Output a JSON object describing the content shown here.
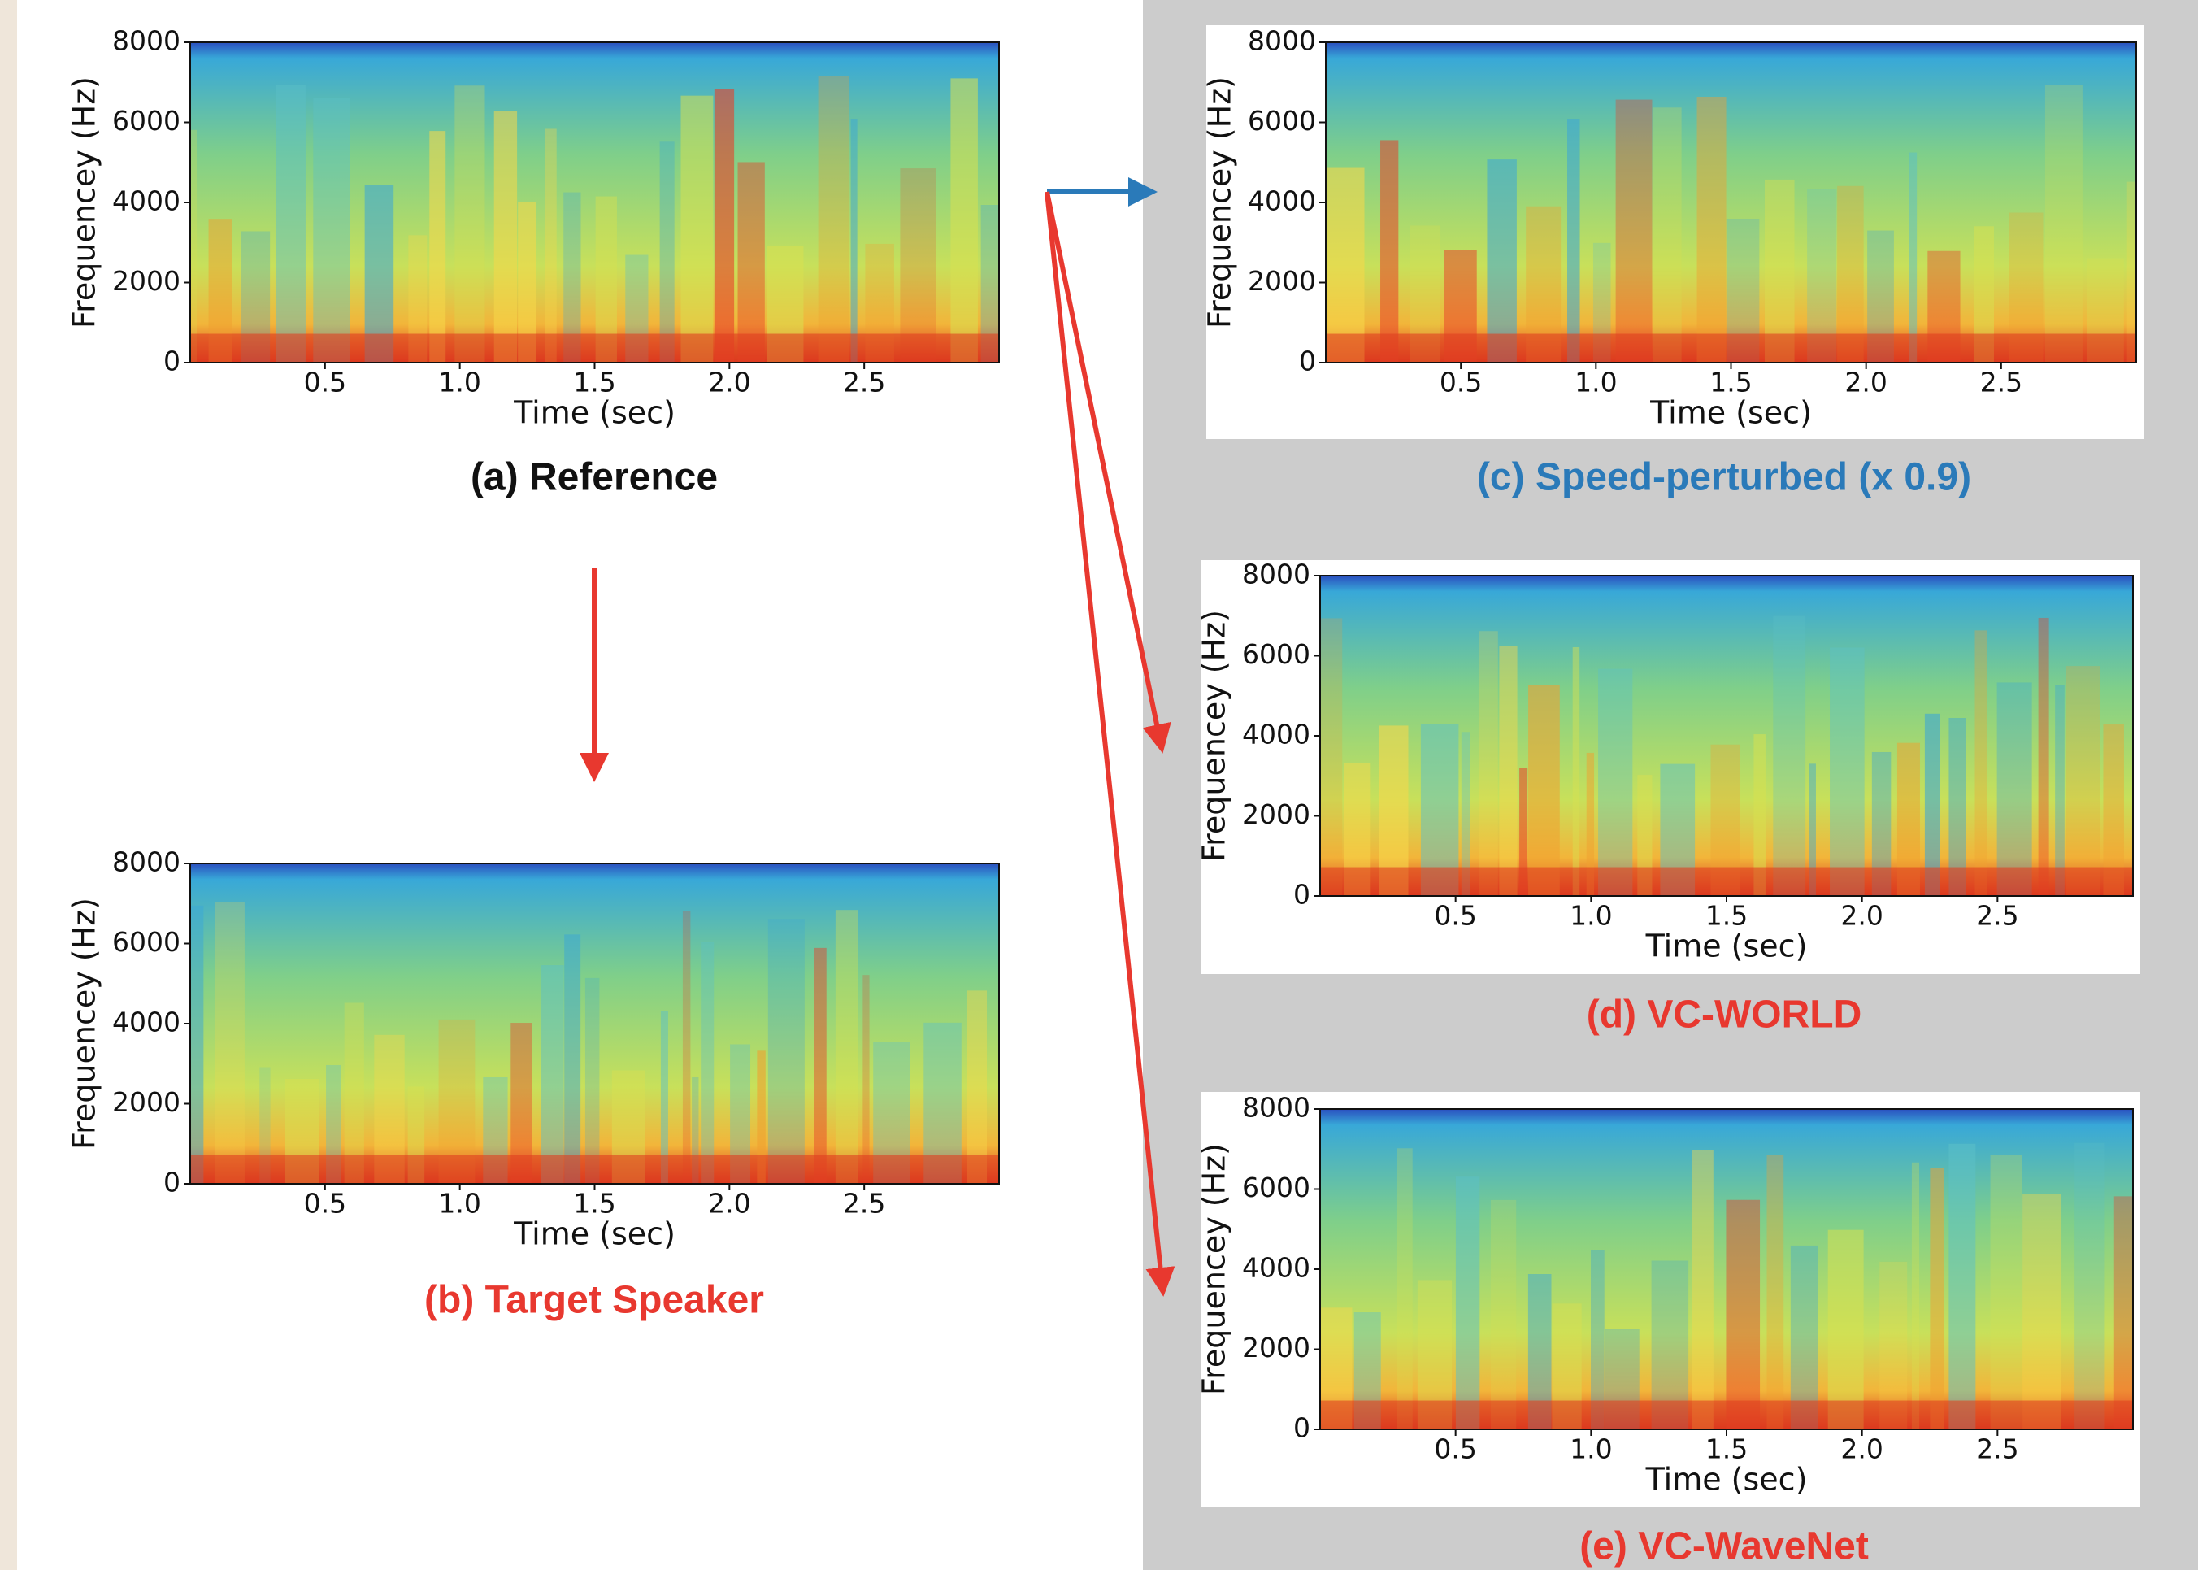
{
  "chart_data": [
    {
      "type": "spectrogram",
      "title": "(a) Reference",
      "title_color": "#111111",
      "xlabel": "Time (sec)",
      "ylabel": "Frequencey (Hz)",
      "xlim": [
        0,
        3
      ],
      "ylim": [
        0,
        8000
      ],
      "xticks": [
        0.5,
        {
          "value": 1,
          "label": "1.0"
        },
        1.5,
        {
          "value": 2,
          "label": "2.0"
        },
        2.5
      ],
      "yticks": [
        0,
        2000,
        4000,
        6000,
        8000
      ]
    },
    {
      "type": "spectrogram",
      "title": "(b) Target Speaker",
      "title_color": "#e8382f",
      "xlabel": "Time (sec)",
      "ylabel": "Frequencey (Hz)",
      "xlim": [
        0,
        3
      ],
      "ylim": [
        0,
        8000
      ],
      "xticks": [
        0.5,
        {
          "value": 1,
          "label": "1.0"
        },
        1.5,
        {
          "value": 2,
          "label": "2.0"
        },
        2.5
      ],
      "yticks": [
        0,
        2000,
        4000,
        6000,
        8000
      ]
    },
    {
      "type": "spectrogram",
      "title": "(c) Speed-perturbed (x 0.9)",
      "title_color": "#2a7ab9",
      "xlabel": "Time (sec)",
      "ylabel": "Frequencey (Hz)",
      "xlim": [
        0,
        3
      ],
      "ylim": [
        0,
        8000
      ],
      "xticks": [
        0.5,
        {
          "value": 1,
          "label": "1.0"
        },
        1.5,
        {
          "value": 2,
          "label": "2.0"
        },
        2.5
      ],
      "yticks": [
        0,
        2000,
        4000,
        6000,
        8000
      ]
    },
    {
      "type": "spectrogram",
      "title": "(d) VC-WORLD",
      "title_color": "#e8382f",
      "xlabel": "Time (sec)",
      "ylabel": "Frequencey (Hz)",
      "xlim": [
        0,
        3
      ],
      "ylim": [
        0,
        8000
      ],
      "xticks": [
        0.5,
        {
          "value": 1,
          "label": "1.0"
        },
        1.5,
        {
          "value": 2,
          "label": "2.0"
        },
        2.5
      ],
      "yticks": [
        0,
        2000,
        4000,
        6000,
        8000
      ]
    },
    {
      "type": "spectrogram",
      "title": "(e) VC-WaveNet",
      "title_color": "#e8382f",
      "xlabel": "Time (sec)",
      "ylabel": "Frequencey (Hz)",
      "xlim": [
        0,
        3
      ],
      "ylim": [
        0,
        8000
      ],
      "xticks": [
        0.5,
        {
          "value": 1,
          "label": "1.0"
        },
        1.5,
        {
          "value": 2,
          "label": "2.0"
        },
        2.5
      ],
      "yticks": [
        0,
        2000,
        4000,
        6000,
        8000
      ]
    }
  ]
}
